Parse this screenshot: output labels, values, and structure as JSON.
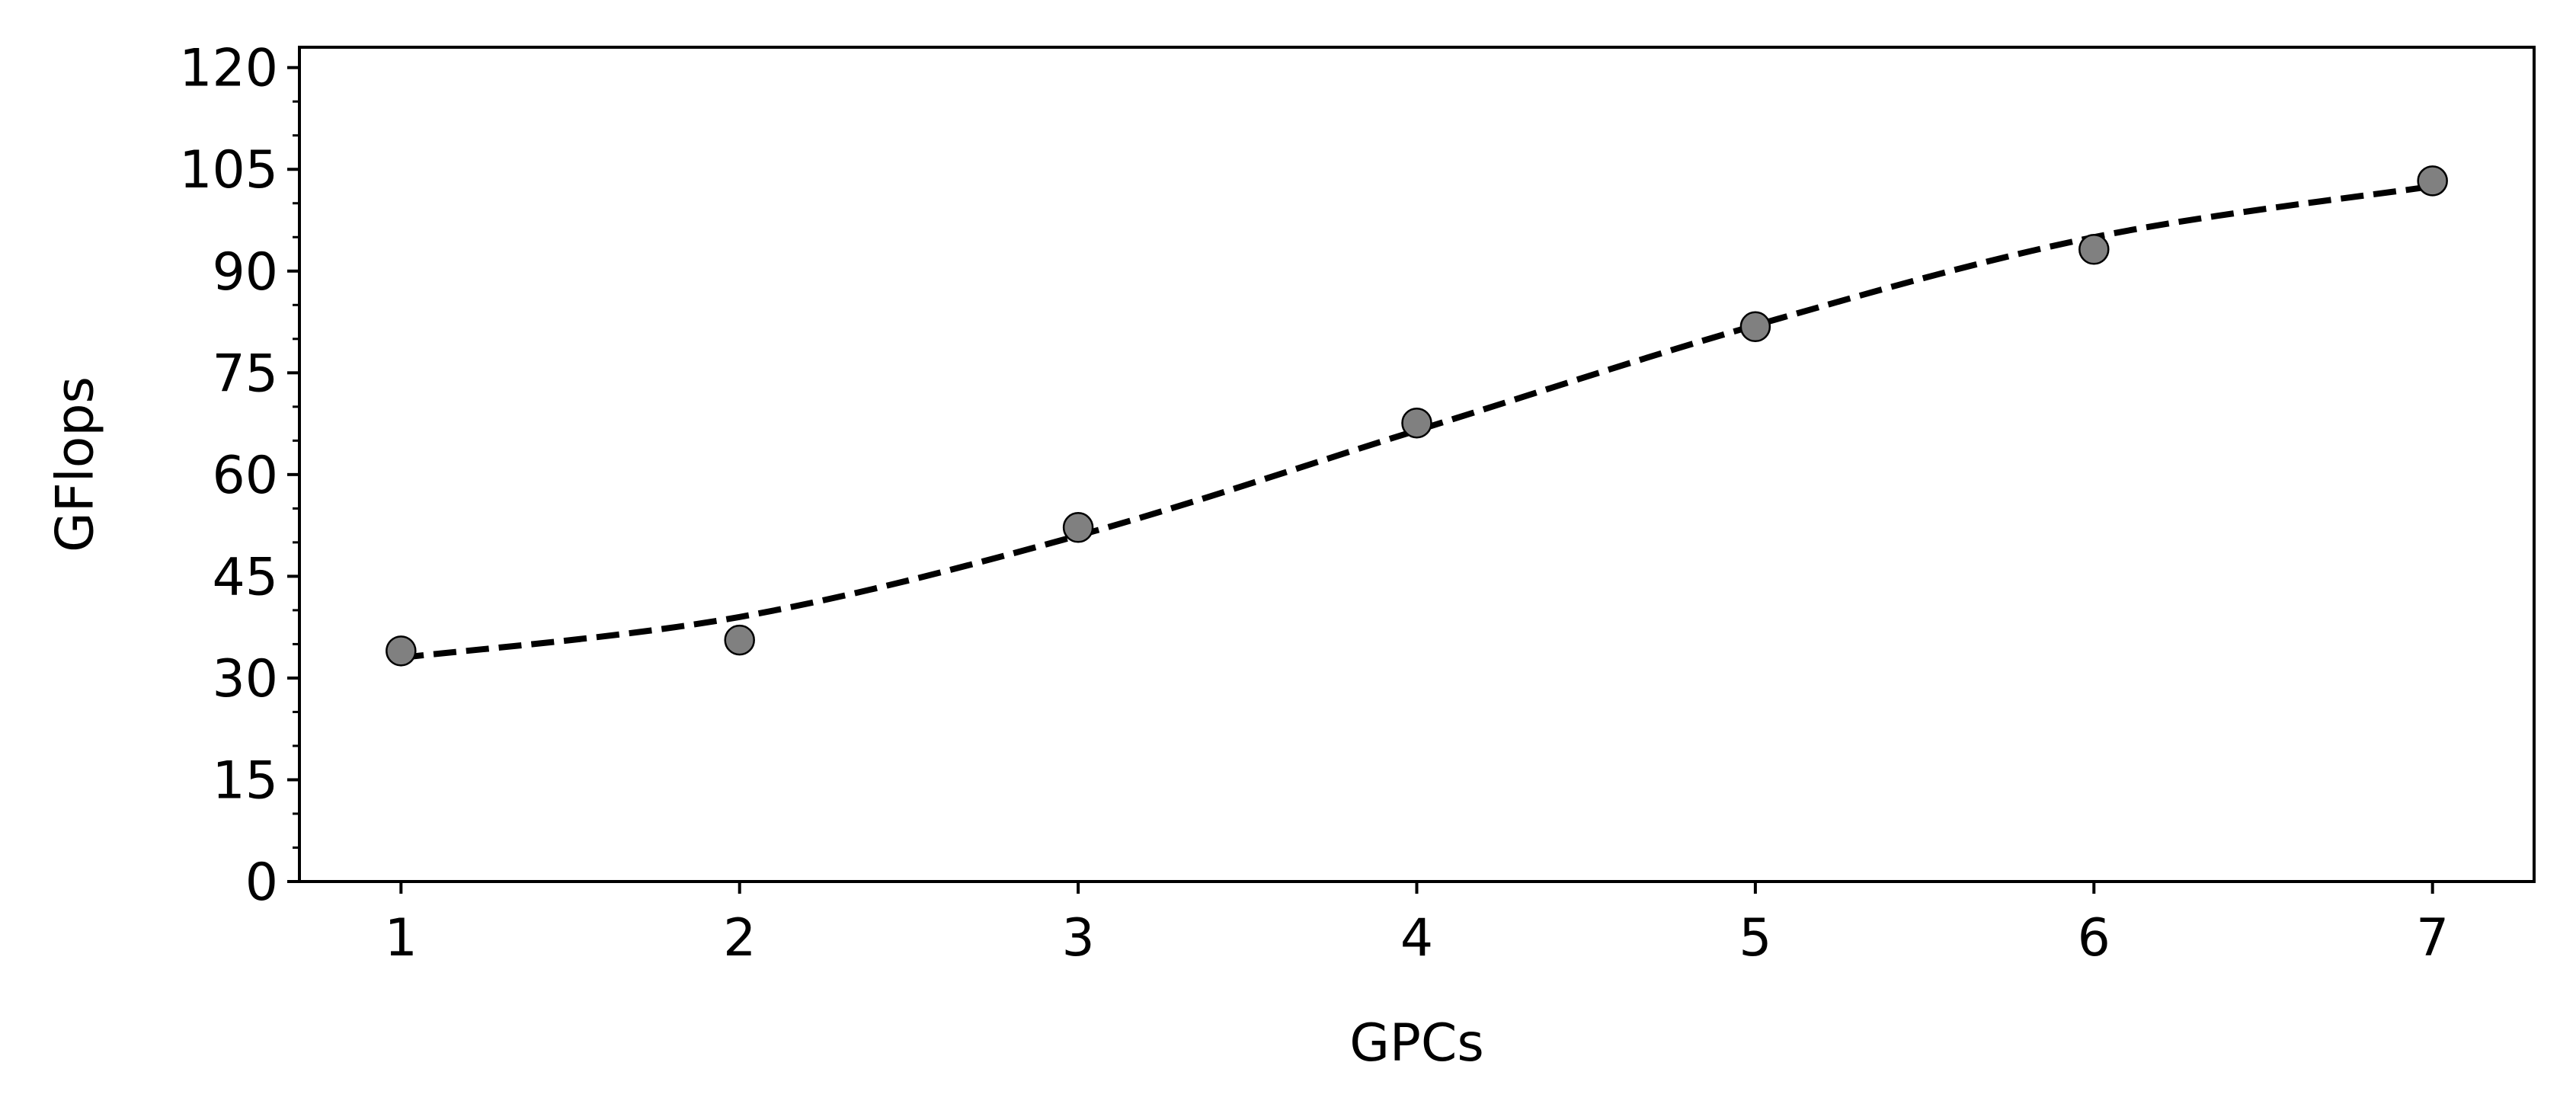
{
  "chart_data": {
    "type": "scatter",
    "title": "",
    "xlabel": "GPCs",
    "ylabel": "GFlops",
    "xlim": [
      0.7,
      7.3
    ],
    "ylim": [
      0,
      123
    ],
    "x_ticks": [
      1,
      2,
      3,
      4,
      5,
      6,
      7
    ],
    "y_ticks": [
      0,
      15,
      30,
      45,
      60,
      75,
      90,
      105,
      120
    ],
    "y_minor_step": 5,
    "grid": false,
    "legend": "none",
    "series": [
      {
        "kind": "points",
        "x": [
          1,
          2,
          3,
          4,
          5,
          6,
          7
        ],
        "y": [
          34,
          35.6,
          52.2,
          67.6,
          81.8,
          93.2,
          103.3
        ],
        "color": "#808080",
        "edge_color": "#000000"
      },
      {
        "kind": "fit-line",
        "x": [
          1,
          2,
          3,
          4,
          5,
          6,
          7
        ],
        "y": [
          33,
          39,
          51,
          66.5,
          82,
          95,
          102.5
        ],
        "color": "#000000",
        "dash": "dashed"
      }
    ]
  }
}
